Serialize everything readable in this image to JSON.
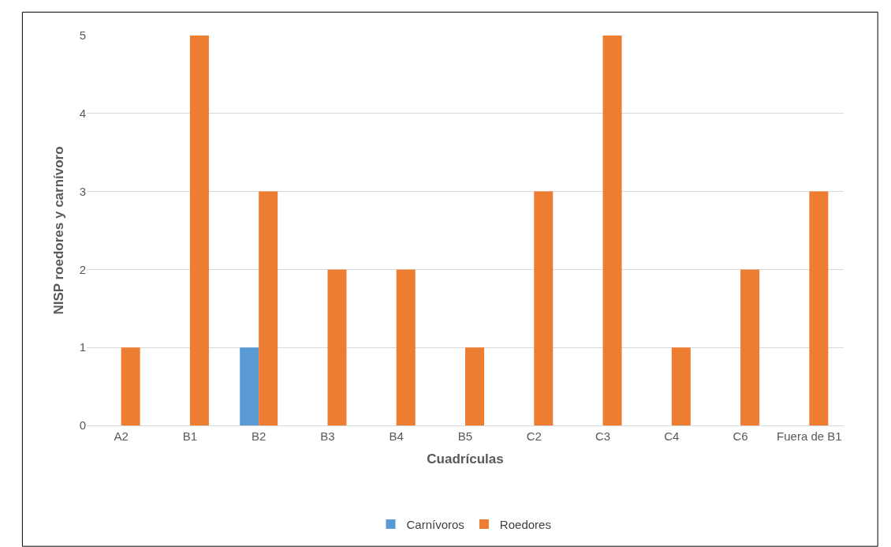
{
  "chart_data": {
    "type": "bar",
    "xlabel": "Cuadrículas",
    "ylabel": "NISP roedores y carnívoro",
    "categories": [
      "A2",
      "B1",
      "B2",
      "B3",
      "B4",
      "B5",
      "C2",
      "C3",
      "C4",
      "C6",
      "Fuera de B1"
    ],
    "series": [
      {
        "name": "Carnívoros",
        "color": "#5b9bd5",
        "values": [
          null,
          null,
          1,
          null,
          null,
          null,
          null,
          null,
          null,
          null,
          null
        ]
      },
      {
        "name": "Roedores",
        "color": "#ed7d31",
        "values": [
          1,
          5,
          3,
          2,
          2,
          1,
          3,
          5,
          1,
          2,
          3
        ]
      }
    ],
    "ylim": [
      0,
      5
    ],
    "yticks": [
      0,
      1,
      2,
      3,
      4,
      5
    ],
    "grid": "y",
    "legend": "bottom"
  }
}
